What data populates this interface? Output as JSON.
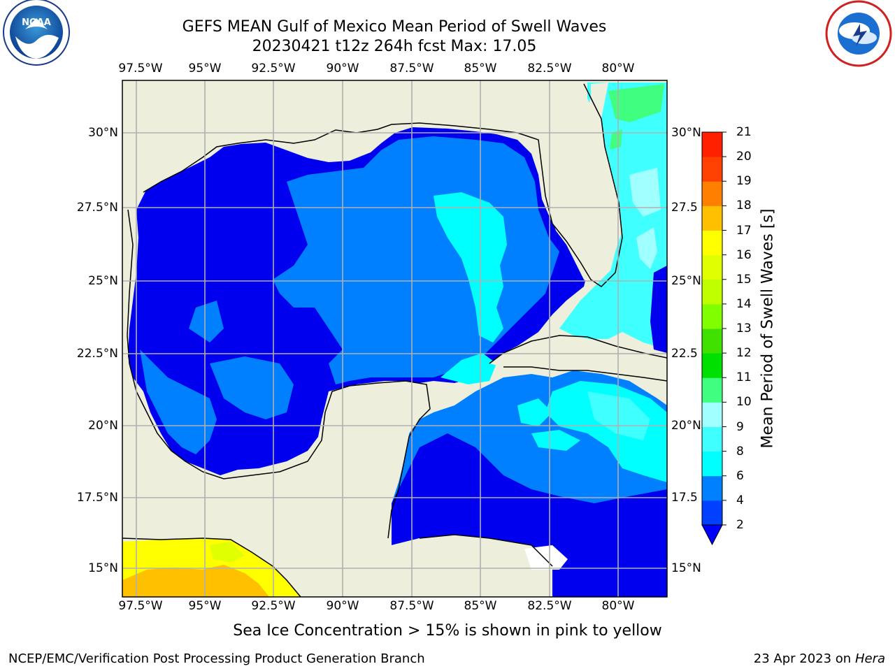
{
  "title_line1": "GEFS MEAN Gulf of Mexico Mean Period of Swell Waves",
  "title_line2": "20230421 t12z 264h fcst   Max: 17.05",
  "map": {
    "lon_ticks": [
      "97.5°W",
      "95°W",
      "92.5°W",
      "90°W",
      "87.5°W",
      "85°W",
      "82.5°W",
      "80°W"
    ],
    "lat_ticks": [
      "30°N",
      "27.5°N",
      "25°N",
      "22.5°N",
      "20°N",
      "17.5°N",
      "15°N"
    ],
    "lat_ticks_right": [
      "30°N",
      "27.5",
      "25°N",
      "22.5",
      "20°N",
      "17.5",
      "15°N"
    ],
    "land_color": "#eeeedd",
    "grid_color": "#b0b0b0"
  },
  "colorbar": {
    "label": "Mean Period of Swell Waves [s]",
    "ticks": [
      "2",
      "4",
      "6",
      "8",
      "9",
      "10",
      "11",
      "12",
      "13",
      "14",
      "15",
      "16",
      "17",
      "18",
      "19",
      "20",
      "21"
    ],
    "colors": [
      "#0040ff",
      "#0080ff",
      "#00ffff",
      "#40ffff",
      "#a0ffff",
      "#40ff80",
      "#00e000",
      "#40e000",
      "#80ff00",
      "#c0ff00",
      "#e0ff00",
      "#ffff00",
      "#ffc000",
      "#ff8000",
      "#ff4000",
      "#ff2000"
    ],
    "extend_color": "#0000ff"
  },
  "caption": "Sea Ice Concentration > 15% is shown in pink to yellow",
  "footer_left": "NCEP/EMC/Verification Post Processing Product Generation Branch",
  "footer_date": "23 Apr 2023 on",
  "footer_machine": "Hera",
  "logos": {
    "left": "NOAA",
    "right": "NATIONAL WEATHER SERVICE"
  }
}
